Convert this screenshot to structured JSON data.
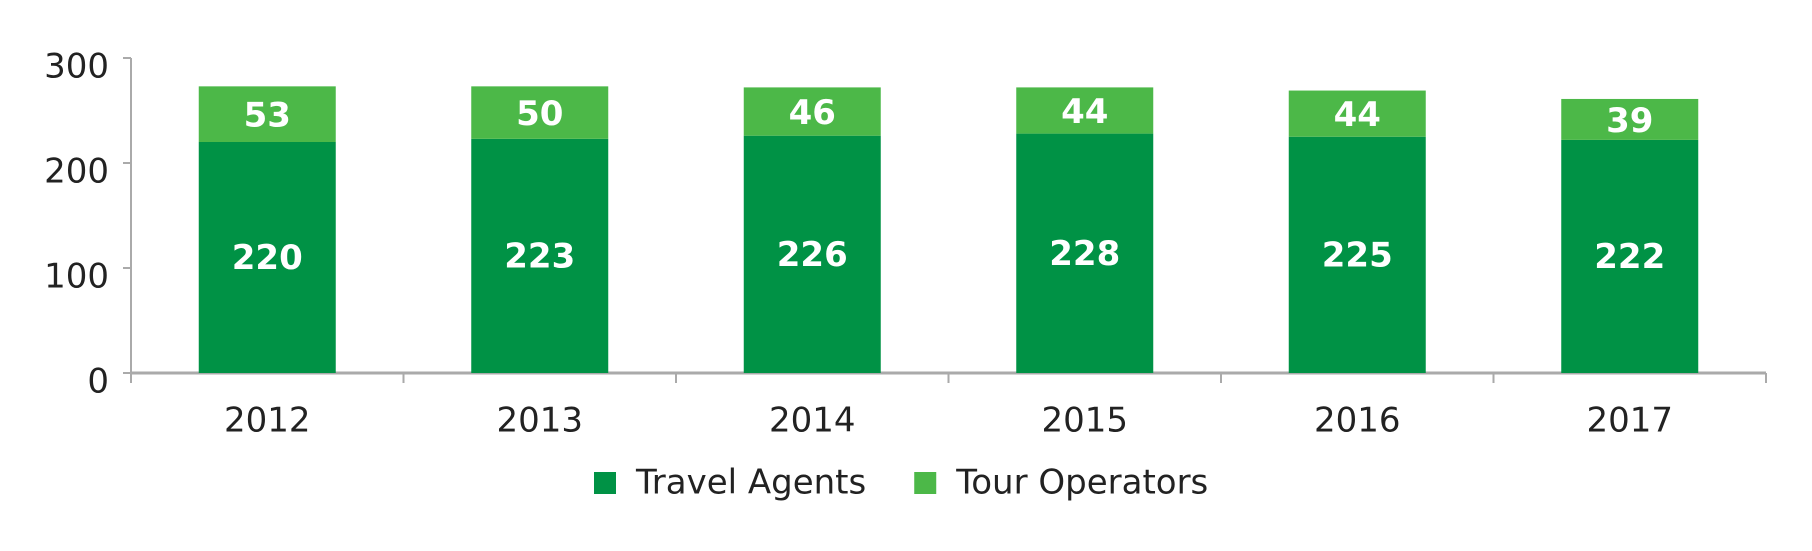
{
  "chart_data": {
    "type": "stacked_bar",
    "categories": [
      "2012",
      "2013",
      "2014",
      "2015",
      "2016",
      "2017"
    ],
    "series": [
      {
        "name": "Travel Agents",
        "color": "#009245",
        "values": [
          220,
          223,
          226,
          228,
          225,
          222
        ]
      },
      {
        "name": "Tour Operators",
        "color": "#4cb848",
        "values": [
          53,
          50,
          46,
          44,
          44,
          39
        ]
      }
    ],
    "ylim": [
      0,
      300
    ],
    "yticks": [
      0,
      100,
      200,
      300
    ],
    "legend": "bottom"
  }
}
